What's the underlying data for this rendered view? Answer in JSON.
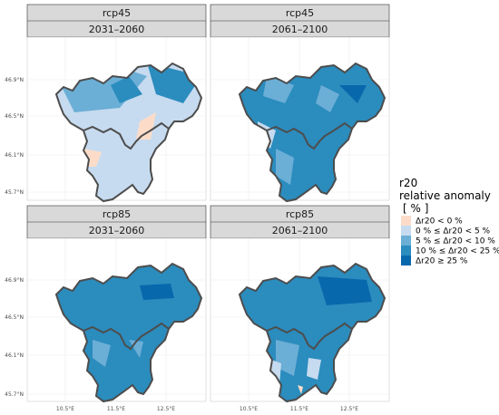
{
  "panels": [
    {
      "scenario": "rcp45",
      "period": "2031–2060"
    },
    {
      "scenario": "rcp45",
      "period": "2061–2100"
    },
    {
      "scenario": "rcp85",
      "period": "2031–2060"
    },
    {
      "scenario": "rcp85",
      "period": "2061–2100"
    }
  ],
  "y_ticks": [
    "45.7°N",
    "46.1°N",
    "46.5°N",
    "46.9°N"
  ],
  "x_ticks": [
    "10.5°E",
    "11.5°E",
    "12.5°E"
  ],
  "legend": {
    "title_line1": "r20",
    "title_line2": "relative anomaly",
    "title_line3": "[ % ]",
    "items": [
      {
        "label": "Δr20 < 0 %",
        "color": "#fcdcc9"
      },
      {
        "label": "0 % ≤ Δr20 < 5 %",
        "color": "#c6dbef"
      },
      {
        "label": "5 % ≤ Δr20 < 10 %",
        "color": "#6baed6"
      },
      {
        "label": "10 % ≤ Δr20 < 25 %",
        "color": "#2b8cbe"
      },
      {
        "label": "Δr20 ≥ 25 %",
        "color": "#0868ac"
      }
    ]
  }
}
